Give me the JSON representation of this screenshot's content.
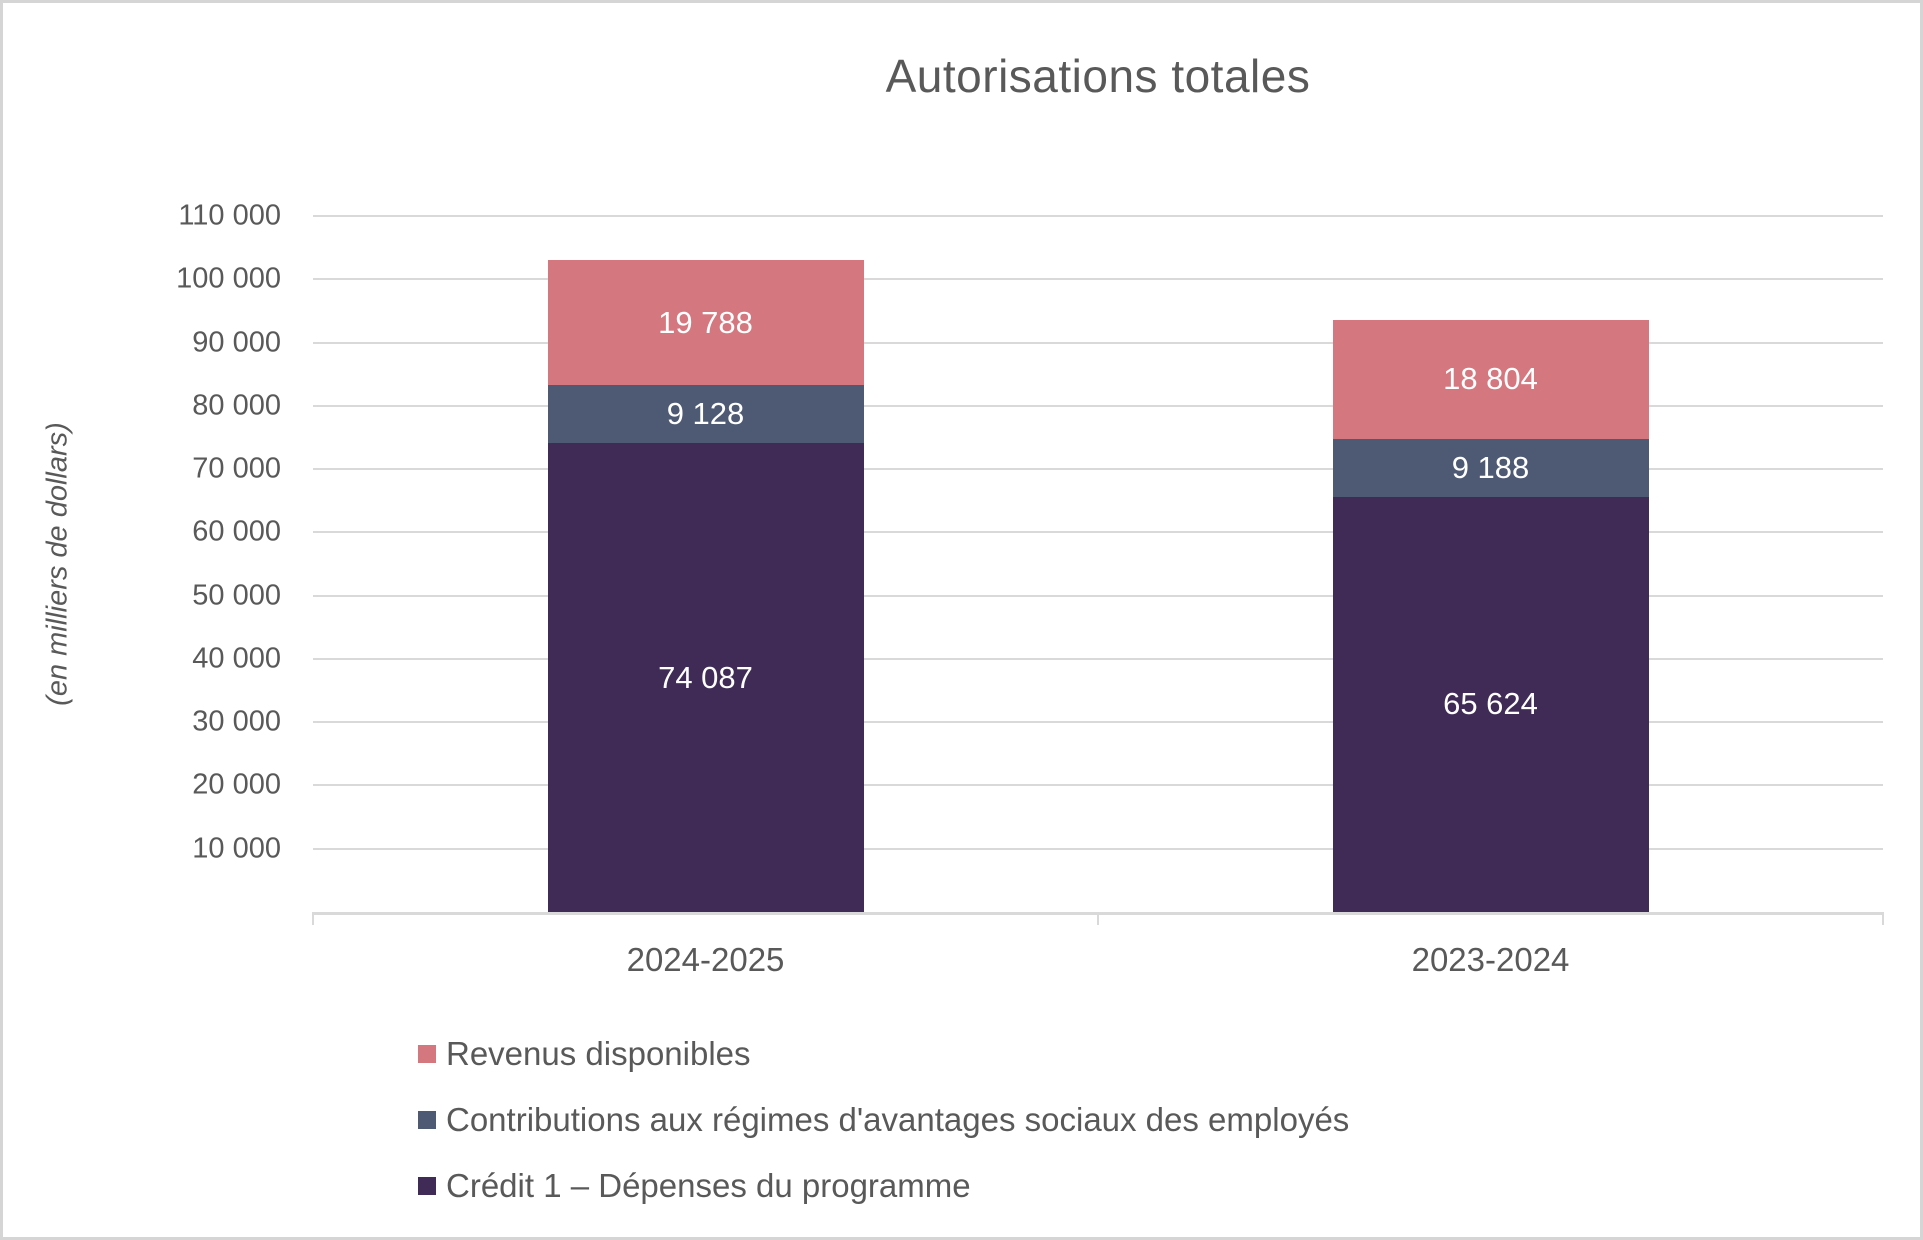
{
  "chart_data": {
    "type": "bar",
    "stacked": true,
    "title": "Autorisations totales",
    "ylabel": "(en milliers de dollars)",
    "xlabel": "",
    "categories": [
      "2024-2025",
      "2023-2024"
    ],
    "series": [
      {
        "name": "Crédit 1 – Dépenses du programme",
        "values": [
          74087,
          65624
        ],
        "labels": [
          "74 087",
          "65 624"
        ],
        "color": "#3f2b56"
      },
      {
        "name": "Contributions aux régimes d'avantages sociaux des employés",
        "values": [
          9128,
          9188
        ],
        "labels": [
          "9 128",
          "9 188"
        ],
        "color": "#4e5a74"
      },
      {
        "name": "Revenus disponibles",
        "values": [
          19788,
          18804
        ],
        "labels": [
          "19 788",
          "18 804"
        ],
        "color": "#d5777e"
      }
    ],
    "totals": [
      103003,
      93616
    ],
    "ylim": [
      0,
      110000
    ],
    "ytick_step": 10000,
    "yticks": [
      {
        "value": 110000,
        "label": "110 000"
      },
      {
        "value": 100000,
        "label": "100 000"
      },
      {
        "value": 90000,
        "label": "90 000"
      },
      {
        "value": 80000,
        "label": "80 000"
      },
      {
        "value": 70000,
        "label": "70 000"
      },
      {
        "value": 60000,
        "label": "60 000"
      },
      {
        "value": 50000,
        "label": "50 000"
      },
      {
        "value": 40000,
        "label": "40 000"
      },
      {
        "value": 30000,
        "label": "30 000"
      },
      {
        "value": 20000,
        "label": "20 000"
      },
      {
        "value": 10000,
        "label": "10 000"
      }
    ],
    "grid": true,
    "legend_position": "bottom-left",
    "legend_order": [
      2,
      1,
      0
    ],
    "colors": {
      "grid": "#d9d9d9",
      "axis": "#d9d9d9",
      "text": "#595959",
      "data_label": "#ffffff",
      "background": "#ffffff",
      "frame_border": "#d5d5d5"
    }
  }
}
